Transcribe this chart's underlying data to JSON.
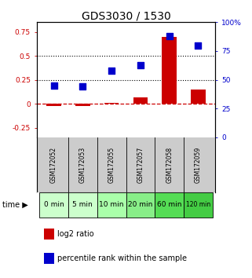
{
  "title": "GDS3030 / 1530",
  "samples": [
    "GSM172052",
    "GSM172053",
    "GSM172055",
    "GSM172057",
    "GSM172058",
    "GSM172059"
  ],
  "time_labels": [
    "0 min",
    "5 min",
    "10 min",
    "20 min",
    "60 min",
    "120 min"
  ],
  "log2_ratio": [
    -0.02,
    -0.02,
    0.01,
    0.07,
    0.7,
    0.15
  ],
  "percentile_rank": [
    45,
    44,
    58,
    63,
    88,
    80
  ],
  "left_ylim": [
    -0.35,
    0.85
  ],
  "right_ylim": [
    0,
    100
  ],
  "left_yticks": [
    -0.25,
    0.0,
    0.25,
    0.5,
    0.75
  ],
  "right_yticks": [
    0,
    25,
    50,
    75,
    100
  ],
  "right_yticklabels": [
    "0",
    "25",
    "50",
    "75",
    "100%"
  ],
  "left_yticklabels": [
    "-0.25",
    "0",
    "0.25",
    "0.5",
    "0.75"
  ],
  "hline_red": 0.0,
  "hline_dotted1": 0.5,
  "hline_dotted2": 0.25,
  "bar_color": "#cc0000",
  "dot_color": "#0000cc",
  "bar_width": 0.5,
  "dot_size": 28,
  "bg_plot": "#ffffff",
  "bg_gsm": "#cccccc",
  "time_colors": [
    "#ccffcc",
    "#ccffcc",
    "#aaffaa",
    "#88ee88",
    "#55dd55",
    "#44cc44"
  ],
  "title_fontsize": 10,
  "tick_fontsize": 6.5,
  "legend_fontsize": 7,
  "gsm_fontsize": 5.5,
  "time_fontsize": 6.5,
  "time_fontsize_last": 5.5
}
